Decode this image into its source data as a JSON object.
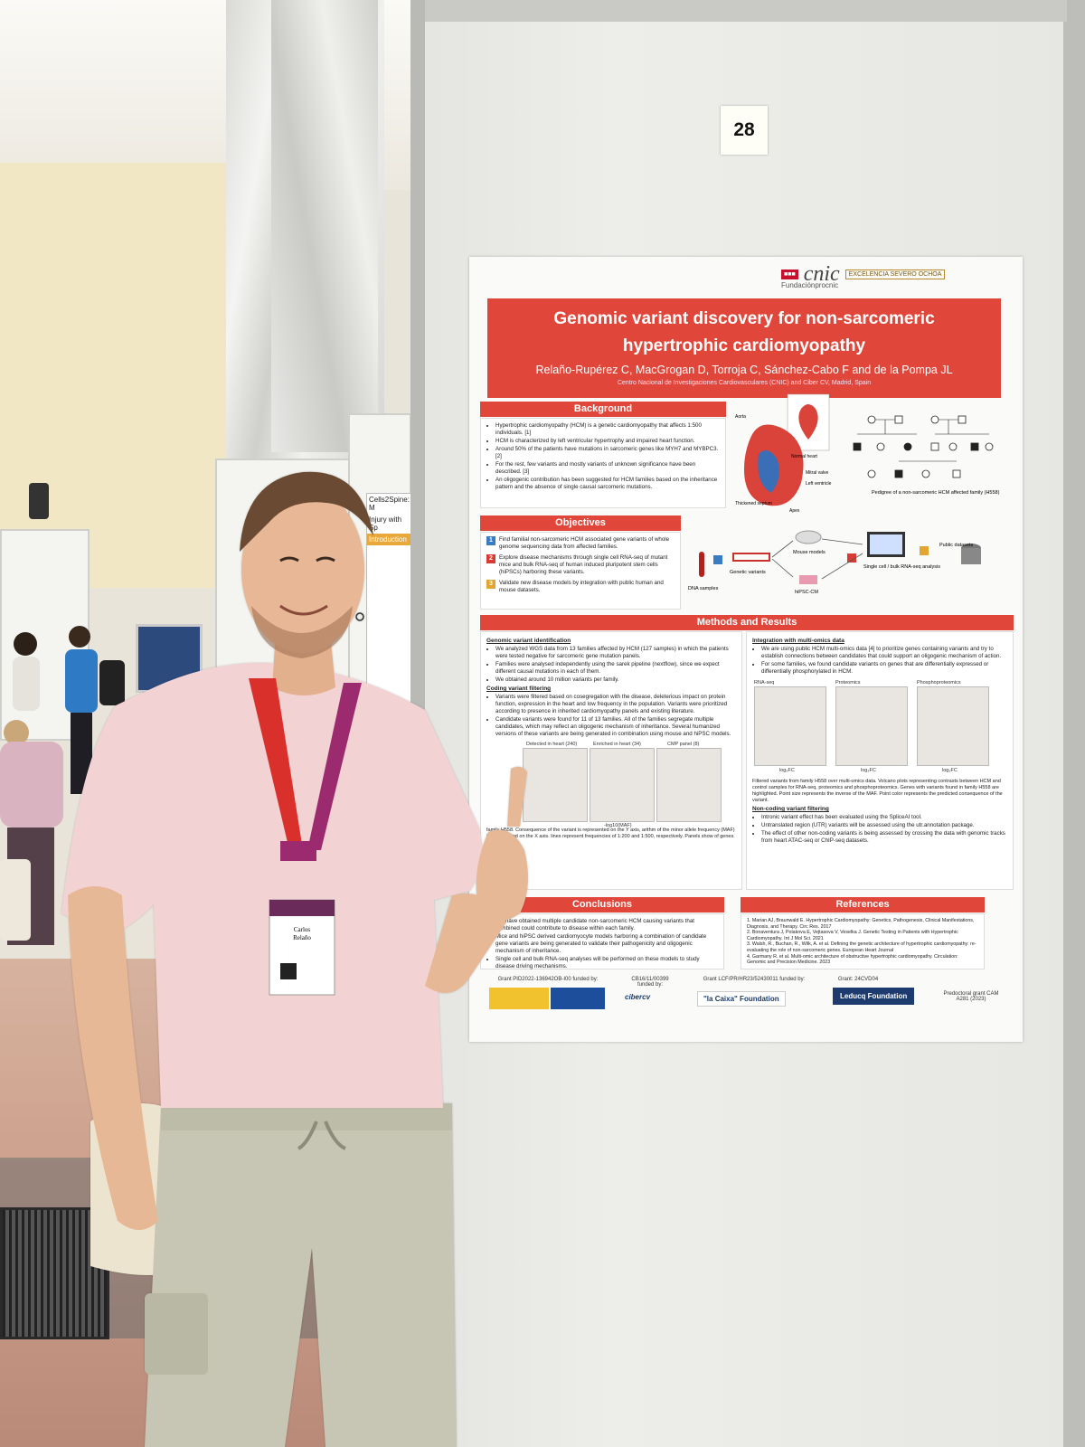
{
  "scene": {
    "board_number": "28",
    "background_sign_1": "Cells2Spine: M",
    "background_sign_2": "Injury with Sp",
    "background_sign_3": "Introduction",
    "badge_name_1": "Carlos",
    "badge_name_2": "Relaño"
  },
  "poster": {
    "logos": {
      "ministry": "",
      "cnic": "cnic",
      "severo_ochoa": "EXCELENCIA SEVERO OCHOA",
      "fundacion": "Fundaciónprocnic"
    },
    "title_line_1": "Genomic variant discovery for non-sarcomeric",
    "title_line_2": "hypertrophic cardiomyopathy",
    "authors": "Relaño-Rupérez C, MacGrogan D, Torroja C, Sánchez-Cabo F and de la Pompa JL",
    "affiliation": "Centro Nacional de Investigaciones Cardiovasculares (CNIC) and Ciber CV, Madrid, Spain",
    "background": {
      "heading": "Background",
      "bullets": [
        "Hypertrophic cardiomyopathy (HCM) is a genetic cardiomyopathy that affects 1:500 individuals. [1]",
        "HCM is characterized by left ventricular hypertrophy and impaired heart function.",
        "Around 50% of the patients have mutations in sarcomeric genes like MYH7 and MYBPC3. [2]",
        "For the rest, few variants and mostly variants of unknown significance have been described. [3]",
        "An oligogenic contribution has been suggested for HCM families based on the inheritance pattern and the absence of single causal sarcomeric mutations."
      ],
      "heart_labels": [
        "Aorta",
        "Normal heart",
        "Mitral valve",
        "Left ventricle",
        "Thickened septum",
        "Apex"
      ],
      "pedigree_caption": "Pedigree of a non-sarcomeric HCM affected family (H558)"
    },
    "objectives": {
      "heading": "Objectives",
      "items": [
        {
          "num": "1",
          "text": "Find familial non-sarcomeric HCM associated gene variants of whole genome sequencing data from affected families."
        },
        {
          "num": "2",
          "text": "Explore disease mechanisms through single cell RNA-seq of mutant mice and bulk RNA-seq of human induced pluripotent stem cells (hiPSCs) harboring these variants."
        },
        {
          "num": "3",
          "text": "Validate new disease models by integration with public human and mouse datasets."
        }
      ],
      "diagram_labels": [
        "DNA samples",
        "Genetic variants",
        "Mouse models",
        "hiPSC-CM",
        "Single cell / bulk RNA-seq analysis",
        "Public datasets"
      ]
    },
    "methods": {
      "heading": "Methods and Results",
      "left": {
        "sub1": "Genomic variant identification",
        "bullets1": [
          "We analyzed WGS data from 13 families affected by HCM (127 samples) in which the patients were tested negative for sarcomeric gene mutation panels.",
          "Families were analysed independently using the sarek pipeline (nextflow), since we expect different causal mutations in each of them.",
          "We obtained around 10 million variants per family."
        ],
        "sub2": "Coding variant filtering",
        "bullets2": [
          "Variants were filtered based on cosegregation with the disease, deleterious impact on protein function, expression in the heart and low frequency in the population. Variants were prioritized according to presence in inherited cardiomyopathy panels and existing literature.",
          "Candidate variants were found for 11 of 13 families. All of the families segregate multiple candidates, which may reflect an oligogenic mechanism of inheritance. Several humanized versions of these variants are being generated in combination using mouse and hiPSC models."
        ],
        "panel_titles": [
          "Detected in heart (240)",
          "Enriched in heart (34)",
          "CMP panel (8)"
        ],
        "x_axis": "-log10(MAF)",
        "caption": "family H558. Consequence of the variant is represented on the Y axis, arithm of the minor allele frequency (MAF) is represented on the X axis. lines represent frequencies of 1:200 and 1:500, respectively. Panels show of genes."
      },
      "right": {
        "sub1": "Integration with multi-omics data",
        "bullets1": [
          "We are using public HCM multi-omics data [4] to prioritize genes containing variants and try to establish connections between candidates that could support an oligogenic mechanism of action.",
          "For some families, we found candidate variants on genes that are differentially expressed or differentially phosphorylated in HCM."
        ],
        "plot_titles": [
          "RNA-seq",
          "Proteomics",
          "Phosphoproteomics"
        ],
        "plot_xlabel": "log₂FC",
        "caption": "Filtered variants from family H558 over multi-omics data. Volcano plots representing contrasts between HCM and control samples for RNA-seq, proteomics and phosphoproteomics. Genes with variants found in family H558 are highlighted. Point size represents the inverse of the MAF. Point color represents the predicted consequence of the variant.",
        "sub2": "Non-coding variant filtering",
        "bullets2": [
          "Intronic variant effect has been evaluated using the SpliceAI tool.",
          "Untranslated region (UTR) variants will be assessed using the utr.annotation package.",
          "The effect of other non-coding variants is being assessed by crossing the data with genomic tracks from heart ATAC-seq or ChIP-seq datasets."
        ]
      }
    },
    "conclusions": {
      "heading": "Conclusions",
      "bullets": [
        "We have obtained multiple candidate non-sarcomeric HCM causing variants that combined could contribute to disease within each family.",
        "Mice and hiPSC derived cardiomyocyte models harboring a combination of candidate gene variants are being generated to validate their pathogenicity and oligogenic mechanism of inheritance.",
        "Single cell and bulk RNA-seq analyses will be performed on these models to study disease driving mechanisms."
      ]
    },
    "references": {
      "heading": "References",
      "items": [
        "1. Marian AJ, Braunwald E. Hypertrophic Cardiomyopathy: Genetics, Pathogenesis, Clinical Manifestations, Diagnosis, and Therapy. Circ Res. 2017",
        "2. Bonaventura J, Polakova E, Vejtasova V, Veselka J. Genetic Testing in Patients with Hypertrophic Cardiomyopathy. Int J Mol Sci. 2021",
        "3. Walsh, R., Buchan, R., Wilk, A. et al. Defining the genetic architecture of hypertrophic cardiomyopathy: re-evaluating the role of non-sarcomeric genes. European Heart Journal",
        "4. Garmany R. et al. Multi-omic architecture of obstructive hypertrophic cardiomyopathy. Circulation: Genomic and Precision Medicine. 2023"
      ]
    },
    "funding": {
      "grant1": "Grant PID2022-136942OB-I00 funded by:",
      "grant2": "CB16/11/00399 funded by:",
      "grant3": "Grant LCF/PR/HR23/52430011 funded by:",
      "grant4": "Grant: 24CVD04",
      "grant5": "Predoctoral grant CAM A281 (2023)",
      "ciber": "cibercv",
      "lacaixa": "\"la Caixa\" Foundation",
      "leducq": "Leducq Foundation"
    }
  },
  "colors": {
    "poster_red": "#e0473a",
    "shirt": "#f3d2d3",
    "pants": "#c7c6b4",
    "lanyard": "#9c2a6e"
  }
}
